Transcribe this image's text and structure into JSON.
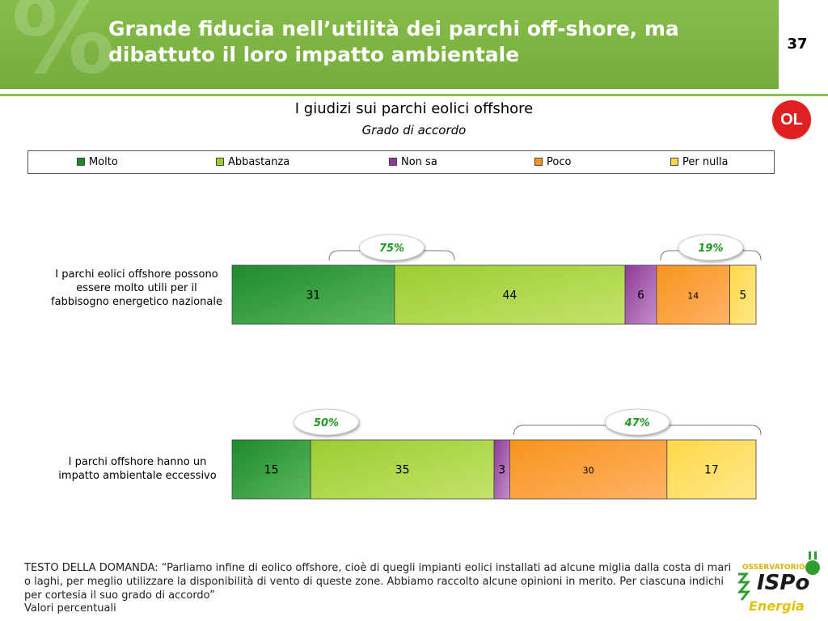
{
  "header": {
    "title": "Grande fiducia nell’utilità dei parchi off-shore, ma dibattuto il loro impatto ambientale",
    "page_number": "37",
    "badge": "OL"
  },
  "footer": {
    "question": "TESTO DELLA DOMANDA: “Parliamo infine di eolico offshore, cioè di quegli impianti eolici installati ad alcune miglia dalla costa di mari o laghi, per meglio utilizzare la disponibilità di vento di queste zone. Abbiamo raccolto alcune opinioni in merito. Per ciascuna indichi per cortesia il suo grado di accordo”",
    "values_note": "Valori percentuali",
    "logo": {
      "top_text": "OSSERVATORIO",
      "main_text": "ISPo",
      "bottom_text": "Energia"
    }
  },
  "colors": {
    "header_green": "#7cb342",
    "molto": "#1e8a2e",
    "abbastanza": "#9acd32",
    "non_sa": "#8e3a96",
    "poco": "#f7941d",
    "per_nulla": "#ffd84a",
    "callout_text": "#1a9a1a"
  },
  "chart_data": {
    "type": "bar",
    "orientation": "horizontal",
    "stacked": true,
    "title": "I giudizi sui parchi eolici offshore",
    "subtitle": "Grado di accordo",
    "legend_position": "top",
    "categories": [
      "I parchi eolici offshore possono essere molto utili per il fabbisogno energetico nazionale",
      "I parchi offshore hanno un impatto ambientale eccessivo"
    ],
    "series": [
      {
        "name": "Molto",
        "values": [
          31,
          15
        ]
      },
      {
        "name": "Abbastanza",
        "values": [
          44,
          35
        ]
      },
      {
        "name": "Non sa",
        "values": [
          6,
          3
        ]
      },
      {
        "name": "Poco",
        "values": [
          14,
          30
        ]
      },
      {
        "name": "Per nulla",
        "values": [
          5,
          17
        ]
      }
    ],
    "annotations": [
      {
        "row": 0,
        "group": "agree",
        "label": "75%"
      },
      {
        "row": 0,
        "group": "disagree",
        "label": "19%"
      },
      {
        "row": 1,
        "group": "agree",
        "label": "50%"
      },
      {
        "row": 1,
        "group": "disagree",
        "label": "47%"
      }
    ],
    "xlim": [
      0,
      100
    ]
  }
}
